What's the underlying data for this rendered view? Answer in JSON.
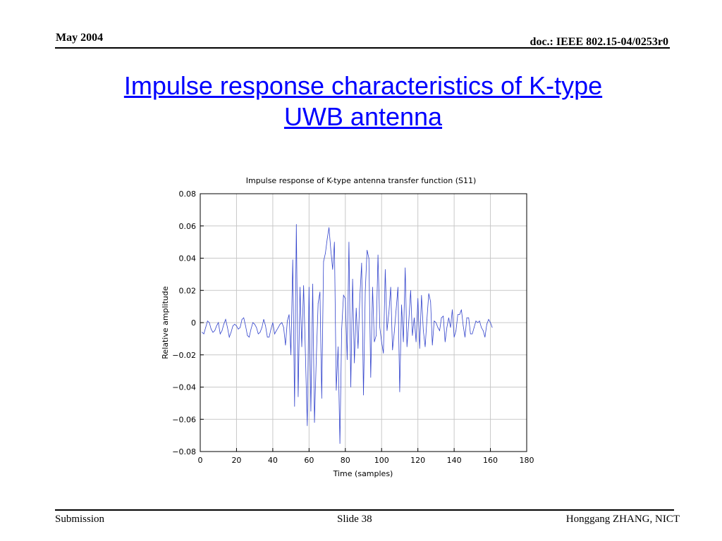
{
  "header": {
    "date": "May 2004",
    "doc": "doc.: IEEE 802.15-04/0253r0"
  },
  "slide_title": {
    "line1": "Impulse response characteristics of K-type",
    "line2": "UWB antenna"
  },
  "footer": {
    "left": "Submission",
    "center": "Slide 38",
    "right": "Honggang ZHANG, NICT"
  },
  "colors": {
    "title": "#0000ff",
    "series": "#3344cc",
    "grid": "#c8c8c8"
  },
  "chart_data": {
    "type": "line",
    "title": "Impulse response of K-type antenna transfer function (S11)",
    "xlabel": "Time (samples)",
    "ylabel": "Relative amplitude",
    "xlim": [
      0,
      180
    ],
    "ylim": [
      -0.08,
      0.08
    ],
    "xticks": [
      0,
      20,
      40,
      60,
      80,
      100,
      120,
      140,
      160,
      180
    ],
    "yticks": [
      -0.08,
      -0.06,
      -0.04,
      -0.02,
      0,
      0.02,
      0.04,
      0.06,
      0.08
    ],
    "ytick_labels": [
      "−0.08",
      "−0.06",
      "−0.04",
      "−0.02",
      "0",
      "0.02",
      "0.04",
      "0.06",
      "0.08"
    ],
    "grid": true,
    "series": [
      {
        "x": [
          1,
          2,
          3,
          4,
          5,
          6,
          7,
          8,
          9,
          10,
          11,
          12,
          13,
          14,
          15,
          16,
          17,
          18,
          19,
          20,
          21,
          22,
          23,
          24,
          25,
          26,
          27,
          28,
          29,
          30,
          31,
          32,
          33,
          34,
          35,
          36,
          37,
          38,
          39,
          40,
          41,
          42,
          43,
          44,
          45,
          46,
          47,
          48,
          49,
          50,
          51,
          52,
          53,
          54,
          55,
          56,
          57,
          58,
          59,
          60,
          61,
          62,
          63,
          64,
          65,
          66,
          67,
          68,
          69,
          70,
          71,
          72,
          73,
          74,
          75,
          76,
          77,
          78,
          79,
          80,
          81,
          82,
          83,
          84,
          85,
          86,
          87,
          88,
          89,
          90,
          91,
          92,
          93,
          94,
          95,
          96,
          97,
          98,
          99,
          100,
          101,
          102,
          103,
          104,
          105,
          106,
          107,
          108,
          109,
          110,
          111,
          112,
          113,
          114,
          115,
          116,
          117,
          118,
          119,
          120,
          121,
          122,
          123,
          124,
          125,
          126,
          127,
          128,
          129,
          130,
          131,
          132,
          133,
          134,
          135,
          136,
          137,
          138,
          139,
          140,
          141,
          142,
          143,
          144,
          145,
          146,
          147,
          148,
          149,
          150,
          151,
          152,
          153,
          154,
          155,
          156,
          157,
          158,
          159,
          160,
          161
        ],
        "y": [
          -0.006,
          -0.007,
          -0.003,
          0.001,
          0,
          -0.004,
          -0.006,
          -0.005,
          -0.002,
          0,
          -0.007,
          -0.005,
          -0.001,
          0.002,
          -0.003,
          -0.009,
          -0.006,
          -0.002,
          -0.001,
          -0.002,
          -0.004,
          -0.003,
          0.002,
          0.003,
          -0.002,
          -0.008,
          -0.009,
          -0.004,
          0,
          -0.001,
          -0.003,
          -0.007,
          -0.006,
          -0.003,
          0.002,
          -0.002,
          -0.009,
          -0.009,
          -0.004,
          0,
          -0.007,
          -0.005,
          -0.003,
          -0.001,
          0,
          -0.003,
          -0.014,
          0.001,
          0.005,
          -0.02,
          0.039,
          -0.052,
          0.061,
          -0.046,
          0.022,
          -0.015,
          0.023,
          -0.02,
          -0.064,
          0.022,
          -0.055,
          0.024,
          -0.062,
          -0.022,
          0.012,
          0.019,
          -0.047,
          0.038,
          0.043,
          0.052,
          0.059,
          0.045,
          0.033,
          0.05,
          -0.042,
          -0.015,
          -0.075,
          -0.004,
          0.017,
          0.015,
          -0.023,
          0.05,
          -0.04,
          0.027,
          -0.025,
          0.009,
          -0.016,
          0.016,
          0.037,
          -0.045,
          0.02,
          0.045,
          0.04,
          -0.034,
          0.022,
          -0.012,
          -0.008,
          0.042,
          -0.003,
          -0.012,
          -0.019,
          0.033,
          -0.005,
          0.006,
          0.022,
          -0.017,
          -0.006,
          0.008,
          0.022,
          -0.043,
          0.011,
          -0.012,
          0.034,
          -0.015,
          0.001,
          0.02,
          -0.008,
          0.003,
          -0.012,
          0.015,
          -0.016,
          0.017,
          -0.005,
          -0.015,
          0.002,
          0.018,
          0.013,
          -0.014,
          0.001,
          0,
          -0.003,
          -0.005,
          0.003,
          0.004,
          -0.012,
          -0.003,
          0.003,
          -0.003,
          0.008,
          -0.009,
          -0.005,
          0.005,
          0.005,
          0.008,
          -0.002,
          -0.009,
          0.003,
          0.003,
          -0.007,
          -0.007,
          -0.003,
          0.001,
          0,
          0.001,
          -0.003,
          -0.005,
          -0.009,
          -0.001,
          0.002,
          0,
          -0.003
        ]
      }
    ]
  }
}
